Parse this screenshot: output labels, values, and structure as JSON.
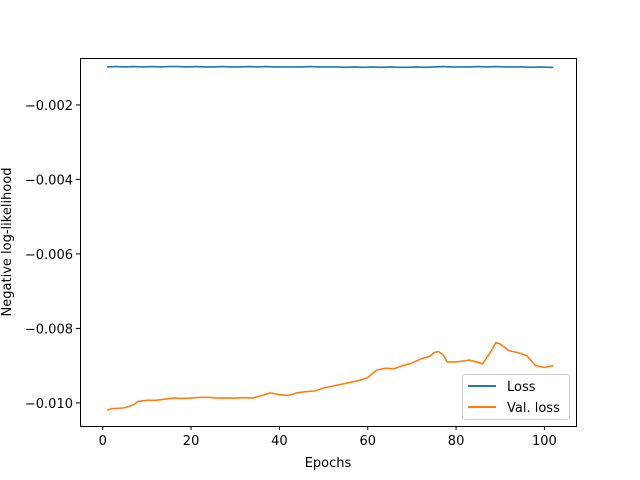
{
  "chart_data": {
    "type": "line",
    "title": "",
    "xlabel": "Epochs",
    "ylabel": "Negative log-likelihood",
    "xlim": [
      -5.15,
      107.15
    ],
    "ylim": [
      -0.01062,
      -0.00074
    ],
    "xticks": [
      0,
      20,
      40,
      60,
      80,
      100
    ],
    "xtick_labels": [
      "0",
      "20",
      "40",
      "60",
      "80",
      "100"
    ],
    "yticks": [
      -0.01,
      -0.008,
      -0.006,
      -0.004,
      -0.002
    ],
    "ytick_labels": [
      "−0.010",
      "−0.008",
      "−0.006",
      "−0.004",
      "−0.002"
    ],
    "grid": false,
    "legend_position": "lower right",
    "series": [
      {
        "name": "Loss",
        "color": "#1f77b4",
        "x": [
          1,
          3,
          5,
          7,
          9,
          11,
          13,
          15,
          17,
          19,
          21,
          23,
          25,
          27,
          29,
          31,
          33,
          35,
          37,
          39,
          41,
          43,
          45,
          47,
          49,
          51,
          53,
          55,
          57,
          59,
          61,
          63,
          65,
          67,
          69,
          71,
          73,
          75,
          77,
          79,
          81,
          83,
          85,
          87,
          89,
          91,
          93,
          95,
          97,
          99,
          101,
          102
        ],
        "y": [
          -0.00098,
          -0.00097,
          -0.00098,
          -0.00097,
          -0.00098,
          -0.00097,
          -0.00098,
          -0.00097,
          -0.00097,
          -0.00098,
          -0.00097,
          -0.00098,
          -0.00098,
          -0.00097,
          -0.00098,
          -0.00098,
          -0.00097,
          -0.00098,
          -0.00097,
          -0.00098,
          -0.00098,
          -0.00098,
          -0.00098,
          -0.00097,
          -0.00098,
          -0.00098,
          -0.00098,
          -0.00099,
          -0.00098,
          -0.00099,
          -0.00098,
          -0.00099,
          -0.00098,
          -0.00099,
          -0.00099,
          -0.00098,
          -0.00099,
          -0.00098,
          -0.00097,
          -0.00098,
          -0.00098,
          -0.00098,
          -0.00097,
          -0.00098,
          -0.00097,
          -0.00098,
          -0.00098,
          -0.00098,
          -0.00099,
          -0.00098,
          -0.00099,
          -0.00099
        ]
      },
      {
        "name": "Val. loss",
        "color": "#ff7f0e",
        "x": [
          1,
          2,
          3,
          5,
          7,
          8,
          10,
          12,
          14,
          16,
          18,
          20,
          22,
          24,
          26,
          28,
          30,
          32,
          34,
          36,
          38,
          40,
          42,
          44,
          46,
          48,
          50,
          52,
          54,
          56,
          58,
          60,
          62,
          64,
          66,
          68,
          70,
          72,
          74,
          75,
          76,
          77,
          78,
          80,
          82,
          83,
          84,
          86,
          88,
          89,
          90,
          92,
          94,
          96,
          98,
          100,
          102
        ],
        "y": [
          -0.0102,
          -0.01015,
          -0.01015,
          -0.01013,
          -0.01005,
          -0.00996,
          -0.00993,
          -0.00993,
          -0.0099,
          -0.00987,
          -0.00988,
          -0.00987,
          -0.00985,
          -0.00985,
          -0.00987,
          -0.00987,
          -0.00987,
          -0.00986,
          -0.00987,
          -0.0098,
          -0.00973,
          -0.00978,
          -0.0098,
          -0.00973,
          -0.0097,
          -0.00968,
          -0.0096,
          -0.00955,
          -0.0095,
          -0.00945,
          -0.0094,
          -0.00932,
          -0.00912,
          -0.00907,
          -0.00908,
          -0.009,
          -0.00893,
          -0.00882,
          -0.00875,
          -0.00865,
          -0.00862,
          -0.0087,
          -0.0089,
          -0.0089,
          -0.00887,
          -0.00885,
          -0.00888,
          -0.00895,
          -0.0086,
          -0.00838,
          -0.00842,
          -0.0086,
          -0.00865,
          -0.00873,
          -0.009,
          -0.00905,
          -0.009
        ]
      }
    ]
  }
}
